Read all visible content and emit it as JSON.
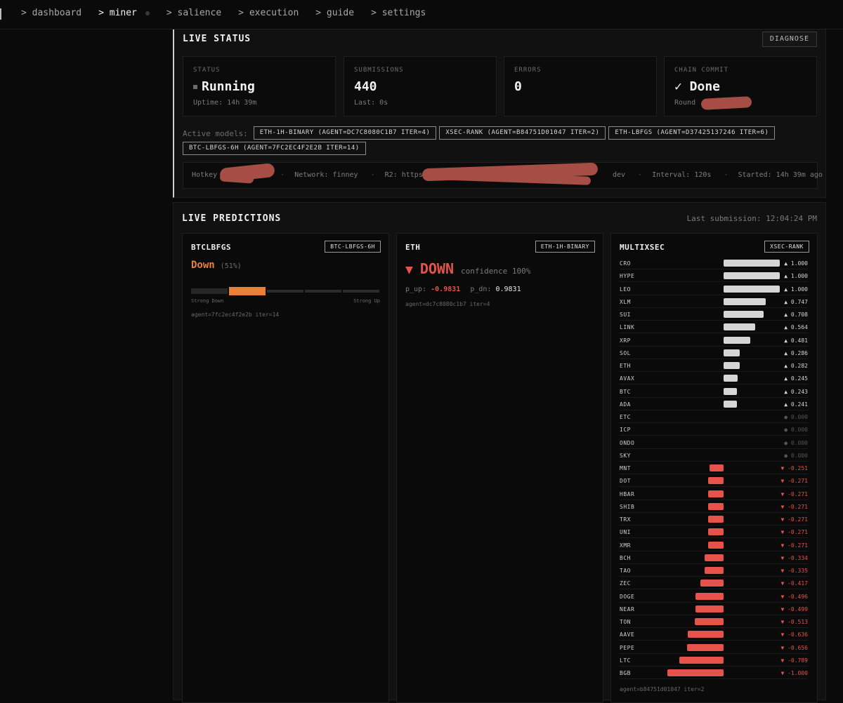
{
  "nav": {
    "items": [
      {
        "label": "> dashboard",
        "active": false
      },
      {
        "label": "> miner",
        "active": true
      },
      {
        "label": "> salience",
        "active": false
      },
      {
        "label": "> execution",
        "active": false
      },
      {
        "label": "> guide",
        "active": false
      },
      {
        "label": "> settings",
        "active": false
      }
    ]
  },
  "live_status": {
    "title": "LIVE STATUS",
    "diagnose_label": "DIAGNOSE",
    "cards": [
      {
        "label": "STATUS",
        "value": "Running",
        "sub": "Uptime: 14h 39m"
      },
      {
        "label": "SUBMISSIONS",
        "value": "440",
        "sub": "Last: 0s"
      },
      {
        "label": "ERRORS",
        "value": "0",
        "sub": ""
      },
      {
        "label": "CHAIN COMMIT",
        "value": "✓ Done",
        "sub": "Round"
      }
    ],
    "active_models_label": "Active models:",
    "models": [
      "ETH-1H-BINARY (AGENT=DC7C8080C1B7 ITER=4)",
      "XSEC-RANK (AGENT=B84751D01047 ITER=2)",
      "ETH-LBFGS (AGENT=D37425137246 ITER=6)",
      "BTC-LBFGS-6H (AGENT=7FC2EC4F2E2B ITER=14)"
    ],
    "meta": {
      "hotkey": "Hotkey",
      "network": "Network: finney",
      "r2": "R2: https:/",
      "r2_tail": "dev",
      "interval": "Interval: 120s",
      "started": "Started: 14h 39m ago",
      "sep": "·"
    }
  },
  "live_predictions": {
    "title": "LIVE PREDICTIONS",
    "last_submission": "Last submission: 12:04:24 PM",
    "btc": {
      "title": "BTCLBFGS",
      "badge": "BTC-LBFGS-6H",
      "direction": "Down",
      "pct": "(51%)",
      "gauge_active_segment": 2,
      "strong_down": "Strong Down",
      "strong_up": "Strong Up",
      "agent": "agent=7fc2ec4f2e2b iter=14",
      "accent": "#e8803a"
    },
    "eth": {
      "title": "ETH",
      "badge": "ETH-1H-BINARY",
      "arrow": "▼",
      "direction": "DOWN",
      "confidence": "confidence 100%",
      "p_up_label": "p_up:",
      "p_up": "-0.9831",
      "p_dn_label": "p_dn:",
      "p_dn": "0.9831",
      "agent": "agent=dc7c8080c1b7 iter=4",
      "accent": "#e5534b"
    },
    "xsec": {
      "title": "MULTIXSEC",
      "badge": "XSEC-RANK",
      "agent": "agent=b84751d01047 iter=2",
      "rows": [
        {
          "sym": "CRO",
          "val": "▲ 1.000",
          "score": 1.0
        },
        {
          "sym": "HYPE",
          "val": "▲ 1.000",
          "score": 1.0
        },
        {
          "sym": "LEO",
          "val": "▲ 1.000",
          "score": 1.0
        },
        {
          "sym": "XLM",
          "val": "▲ 0.747",
          "score": 0.747
        },
        {
          "sym": "SUI",
          "val": "▲ 0.708",
          "score": 0.708
        },
        {
          "sym": "LINK",
          "val": "▲ 0.564",
          "score": 0.564
        },
        {
          "sym": "XRP",
          "val": "▲ 0.481",
          "score": 0.481
        },
        {
          "sym": "SOL",
          "val": "▲ 0.286",
          "score": 0.286
        },
        {
          "sym": "ETH",
          "val": "▲ 0.282",
          "score": 0.282
        },
        {
          "sym": "AVAX",
          "val": "▲ 0.245",
          "score": 0.245
        },
        {
          "sym": "BTC",
          "val": "▲ 0.243",
          "score": 0.243
        },
        {
          "sym": "ADA",
          "val": "▲ 0.241",
          "score": 0.241
        },
        {
          "sym": "ETC",
          "val": "● 0.000",
          "score": 0
        },
        {
          "sym": "ICP",
          "val": "● 0.000",
          "score": 0
        },
        {
          "sym": "ONDO",
          "val": "● 0.000",
          "score": 0
        },
        {
          "sym": "SKY",
          "val": "● 0.000",
          "score": 0
        },
        {
          "sym": "MNT",
          "val": "▼ -0.251",
          "score": -0.251
        },
        {
          "sym": "DOT",
          "val": "▼ -0.271",
          "score": -0.271
        },
        {
          "sym": "HBAR",
          "val": "▼ -0.271",
          "score": -0.271
        },
        {
          "sym": "SHIB",
          "val": "▼ -0.271",
          "score": -0.271
        },
        {
          "sym": "TRX",
          "val": "▼ -0.271",
          "score": -0.271
        },
        {
          "sym": "UNI",
          "val": "▼ -0.271",
          "score": -0.271
        },
        {
          "sym": "XMR",
          "val": "▼ -0.271",
          "score": -0.271
        },
        {
          "sym": "BCH",
          "val": "▼ -0.334",
          "score": -0.334
        },
        {
          "sym": "TAO",
          "val": "▼ -0.335",
          "score": -0.335
        },
        {
          "sym": "ZEC",
          "val": "▼ -0.417",
          "score": -0.417
        },
        {
          "sym": "DOGE",
          "val": "▼ -0.496",
          "score": -0.496
        },
        {
          "sym": "NEAR",
          "val": "▼ -0.499",
          "score": -0.499
        },
        {
          "sym": "TON",
          "val": "▼ -0.513",
          "score": -0.513
        },
        {
          "sym": "AAVE",
          "val": "▼ -0.636",
          "score": -0.636
        },
        {
          "sym": "PEPE",
          "val": "▼ -0.656",
          "score": -0.656
        },
        {
          "sym": "LTC",
          "val": "▼ -0.789",
          "score": -0.789
        },
        {
          "sym": "BGB",
          "val": "▼ -1.000",
          "score": -1.0
        }
      ]
    }
  },
  "colors": {
    "positive": "#d6d6d6",
    "negative": "#e5534b",
    "neutral": "#555555"
  }
}
